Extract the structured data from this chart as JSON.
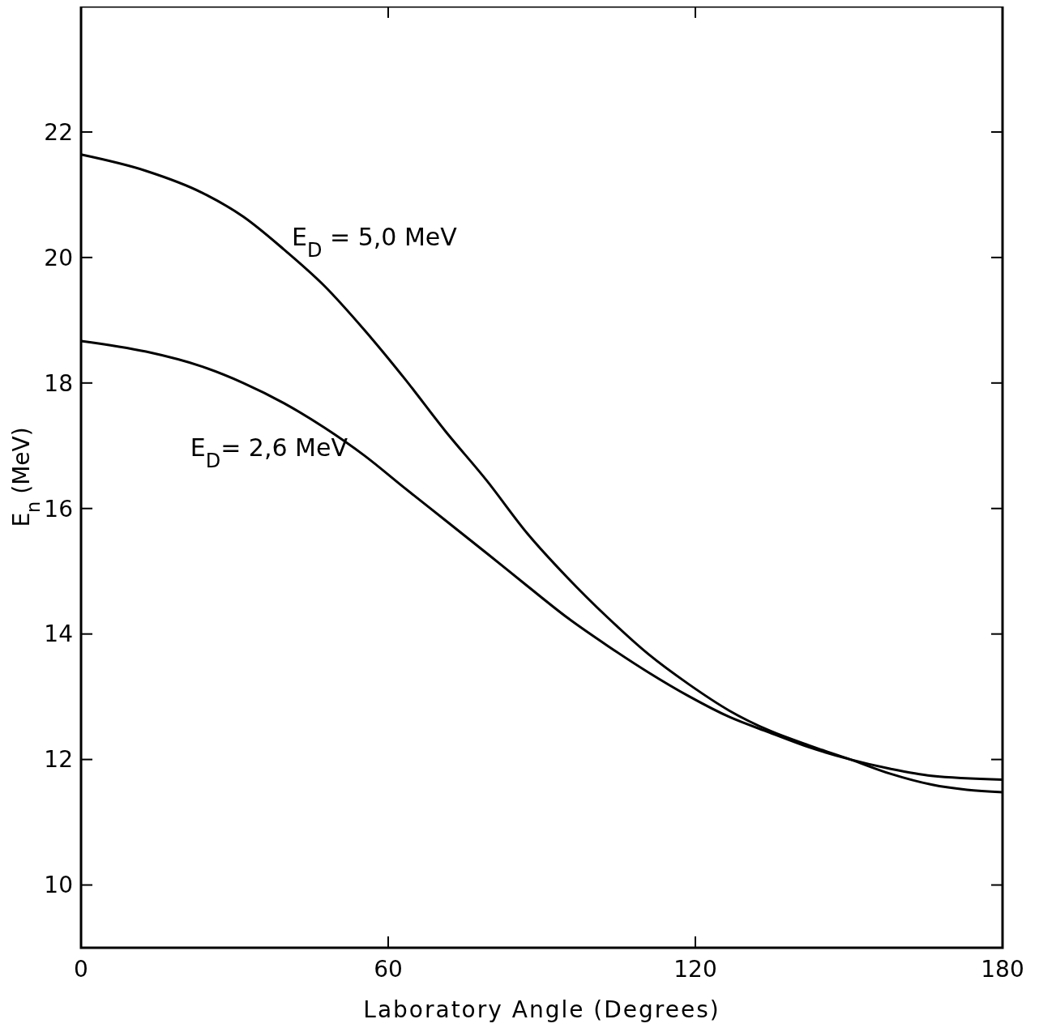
{
  "chart_data": {
    "type": "line",
    "xlabel": "Laboratory Angle (Degrees)",
    "ylabel": "E$_{n}$ (MeV)",
    "xlim": [
      0,
      180
    ],
    "ylim": [
      9,
      24
    ],
    "xticks": [
      0,
      60,
      120,
      180
    ],
    "yticks": [
      10,
      12,
      14,
      16,
      18,
      20,
      22
    ],
    "grid": false,
    "legend": false,
    "marker": "none",
    "line_style": "solid",
    "x": [
      0,
      12.7,
      23.7,
      31.7,
      39.6,
      47.5,
      55.4,
      63.3,
      71.2,
      79.2,
      87.1,
      95,
      102.9,
      110.8,
      118.7,
      126.6,
      134.5,
      142.4,
      150.3,
      158.2,
      166.1,
      180
    ],
    "series": [
      {
        "name": "E$_{D}$ = 5,0 MeV",
        "color": "#000000",
        "values": [
          21.64,
          21.38,
          21.03,
          20.65,
          20.13,
          19.55,
          18.84,
          18.06,
          17.23,
          16.45,
          15.61,
          14.9,
          14.26,
          13.68,
          13.2,
          12.78,
          12.46,
          12.22,
          12.0,
          11.77,
          11.6,
          11.48
        ]
      },
      {
        "name": "E$_{D}$= 2,6 MeV",
        "color": "#000000",
        "values": [
          18.67,
          18.5,
          18.26,
          18.0,
          17.68,
          17.29,
          16.84,
          16.32,
          15.81,
          15.29,
          14.77,
          14.26,
          13.81,
          13.39,
          13.01,
          12.68,
          12.43,
          12.19,
          12.0,
          11.85,
          11.74,
          11.68
        ]
      }
    ]
  }
}
